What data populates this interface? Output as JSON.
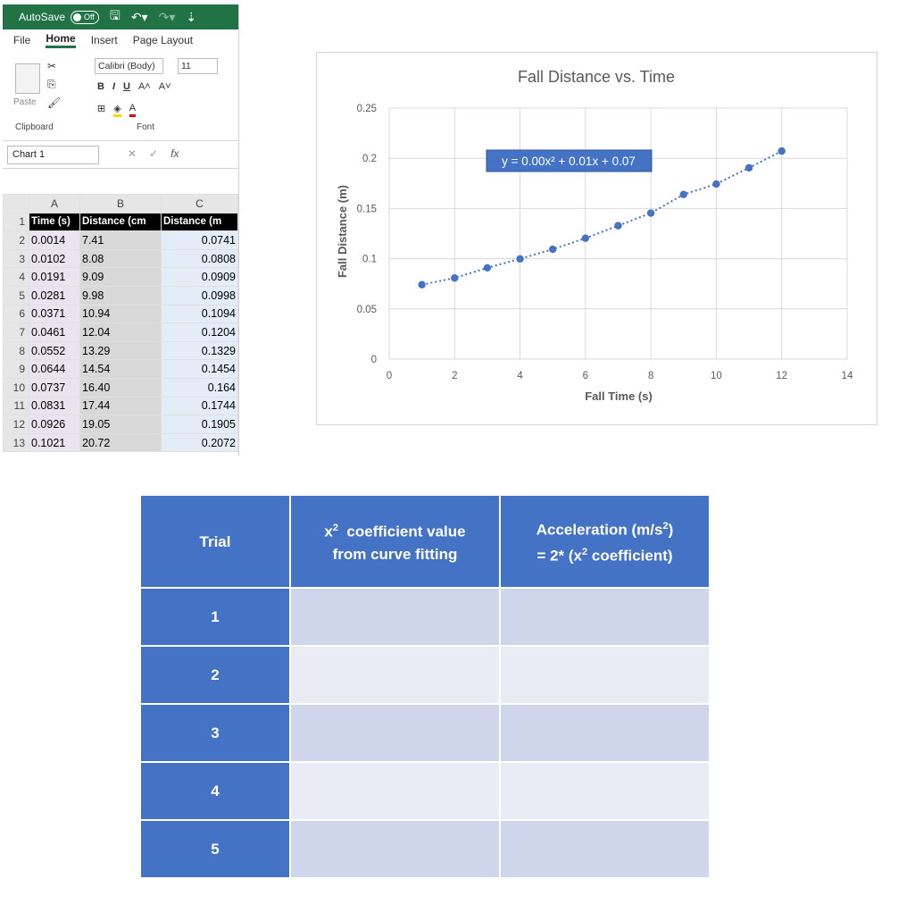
{
  "excel": {
    "title_bar": {
      "autosave_label": "AutoSave",
      "autosave_state": "Off"
    },
    "tabs": [
      "File",
      "Home",
      "Insert",
      "Page Layout"
    ],
    "active_tab": "Home",
    "ribbon": {
      "paste_label": "Paste",
      "font_name": "Calibri (Body)",
      "font_size": "11",
      "bold": "B",
      "italic": "I",
      "underline": "U",
      "clipboard_label": "Clipboard",
      "font_group_label": "Font"
    },
    "name_box": "Chart 1",
    "formula_fx": "fx",
    "columns": [
      "A",
      "B",
      "C"
    ],
    "header_row": [
      "Time (s)",
      "Distance (cm",
      "Distance (m"
    ],
    "rows": [
      {
        "n": "2",
        "a": "0.0014",
        "b": "7.41",
        "c": "0.0741"
      },
      {
        "n": "3",
        "a": "0.0102",
        "b": "8.08",
        "c": "0.0808"
      },
      {
        "n": "4",
        "a": "0.0191",
        "b": "9.09",
        "c": "0.0909"
      },
      {
        "n": "5",
        "a": "0.0281",
        "b": "9.98",
        "c": "0.0998"
      },
      {
        "n": "6",
        "a": "0.0371",
        "b": "10.94",
        "c": "0.1094"
      },
      {
        "n": "7",
        "a": "0.0461",
        "b": "12.04",
        "c": "0.1204"
      },
      {
        "n": "8",
        "a": "0.0552",
        "b": "13.29",
        "c": "0.1329"
      },
      {
        "n": "9",
        "a": "0.0644",
        "b": "14.54",
        "c": "0.1454"
      },
      {
        "n": "10",
        "a": "0.0737",
        "b": "16.40",
        "c": "0.164"
      },
      {
        "n": "11",
        "a": "0.0831",
        "b": "17.44",
        "c": "0.1744"
      },
      {
        "n": "12",
        "a": "0.0926",
        "b": "19.05",
        "c": "0.1905"
      },
      {
        "n": "13",
        "a": "0.1021",
        "b": "20.72",
        "c": "0.2072"
      }
    ]
  },
  "chart_data": {
    "type": "scatter",
    "title": "Fall Distance vs. Time",
    "xlabel": "Fall Time (s)",
    "ylabel": "Fall Distance (m)",
    "xlim": [
      0,
      14
    ],
    "ylim": [
      0,
      0.25
    ],
    "x_ticks": [
      "0",
      "2",
      "4",
      "6",
      "8",
      "10",
      "12",
      "14"
    ],
    "y_ticks": [
      "0",
      "0.05",
      "0.1",
      "0.15",
      "0.2",
      "0.25"
    ],
    "grid": true,
    "trendline": {
      "type": "polynomial",
      "order": 2,
      "label": "y = 0.00x² + 0.01x + 0.07",
      "style": "dotted"
    },
    "x": [
      1,
      2,
      3,
      4,
      5,
      6,
      7,
      8,
      9,
      10,
      11,
      12
    ],
    "y": [
      0.0741,
      0.0808,
      0.0909,
      0.0998,
      0.1094,
      0.1204,
      0.1329,
      0.1454,
      0.164,
      0.1744,
      0.1905,
      0.2072
    ],
    "marker_color": "#4472c4"
  },
  "results_table": {
    "headers": {
      "trial": "Trial",
      "coef_main": "x",
      "coef_sup": "2",
      "coef_rest": "  coefficient value",
      "coef_line2": "from curve fitting",
      "acc_line1_main": "Acceleration (m/s",
      "acc_line1_sup": "2",
      "acc_line1_end": ")",
      "acc_line2_pre": "= 2* (x",
      "acc_line2_sup": "2",
      "acc_line2_end": " coefficient)"
    },
    "trials": [
      "1",
      "2",
      "3",
      "4",
      "5"
    ]
  }
}
